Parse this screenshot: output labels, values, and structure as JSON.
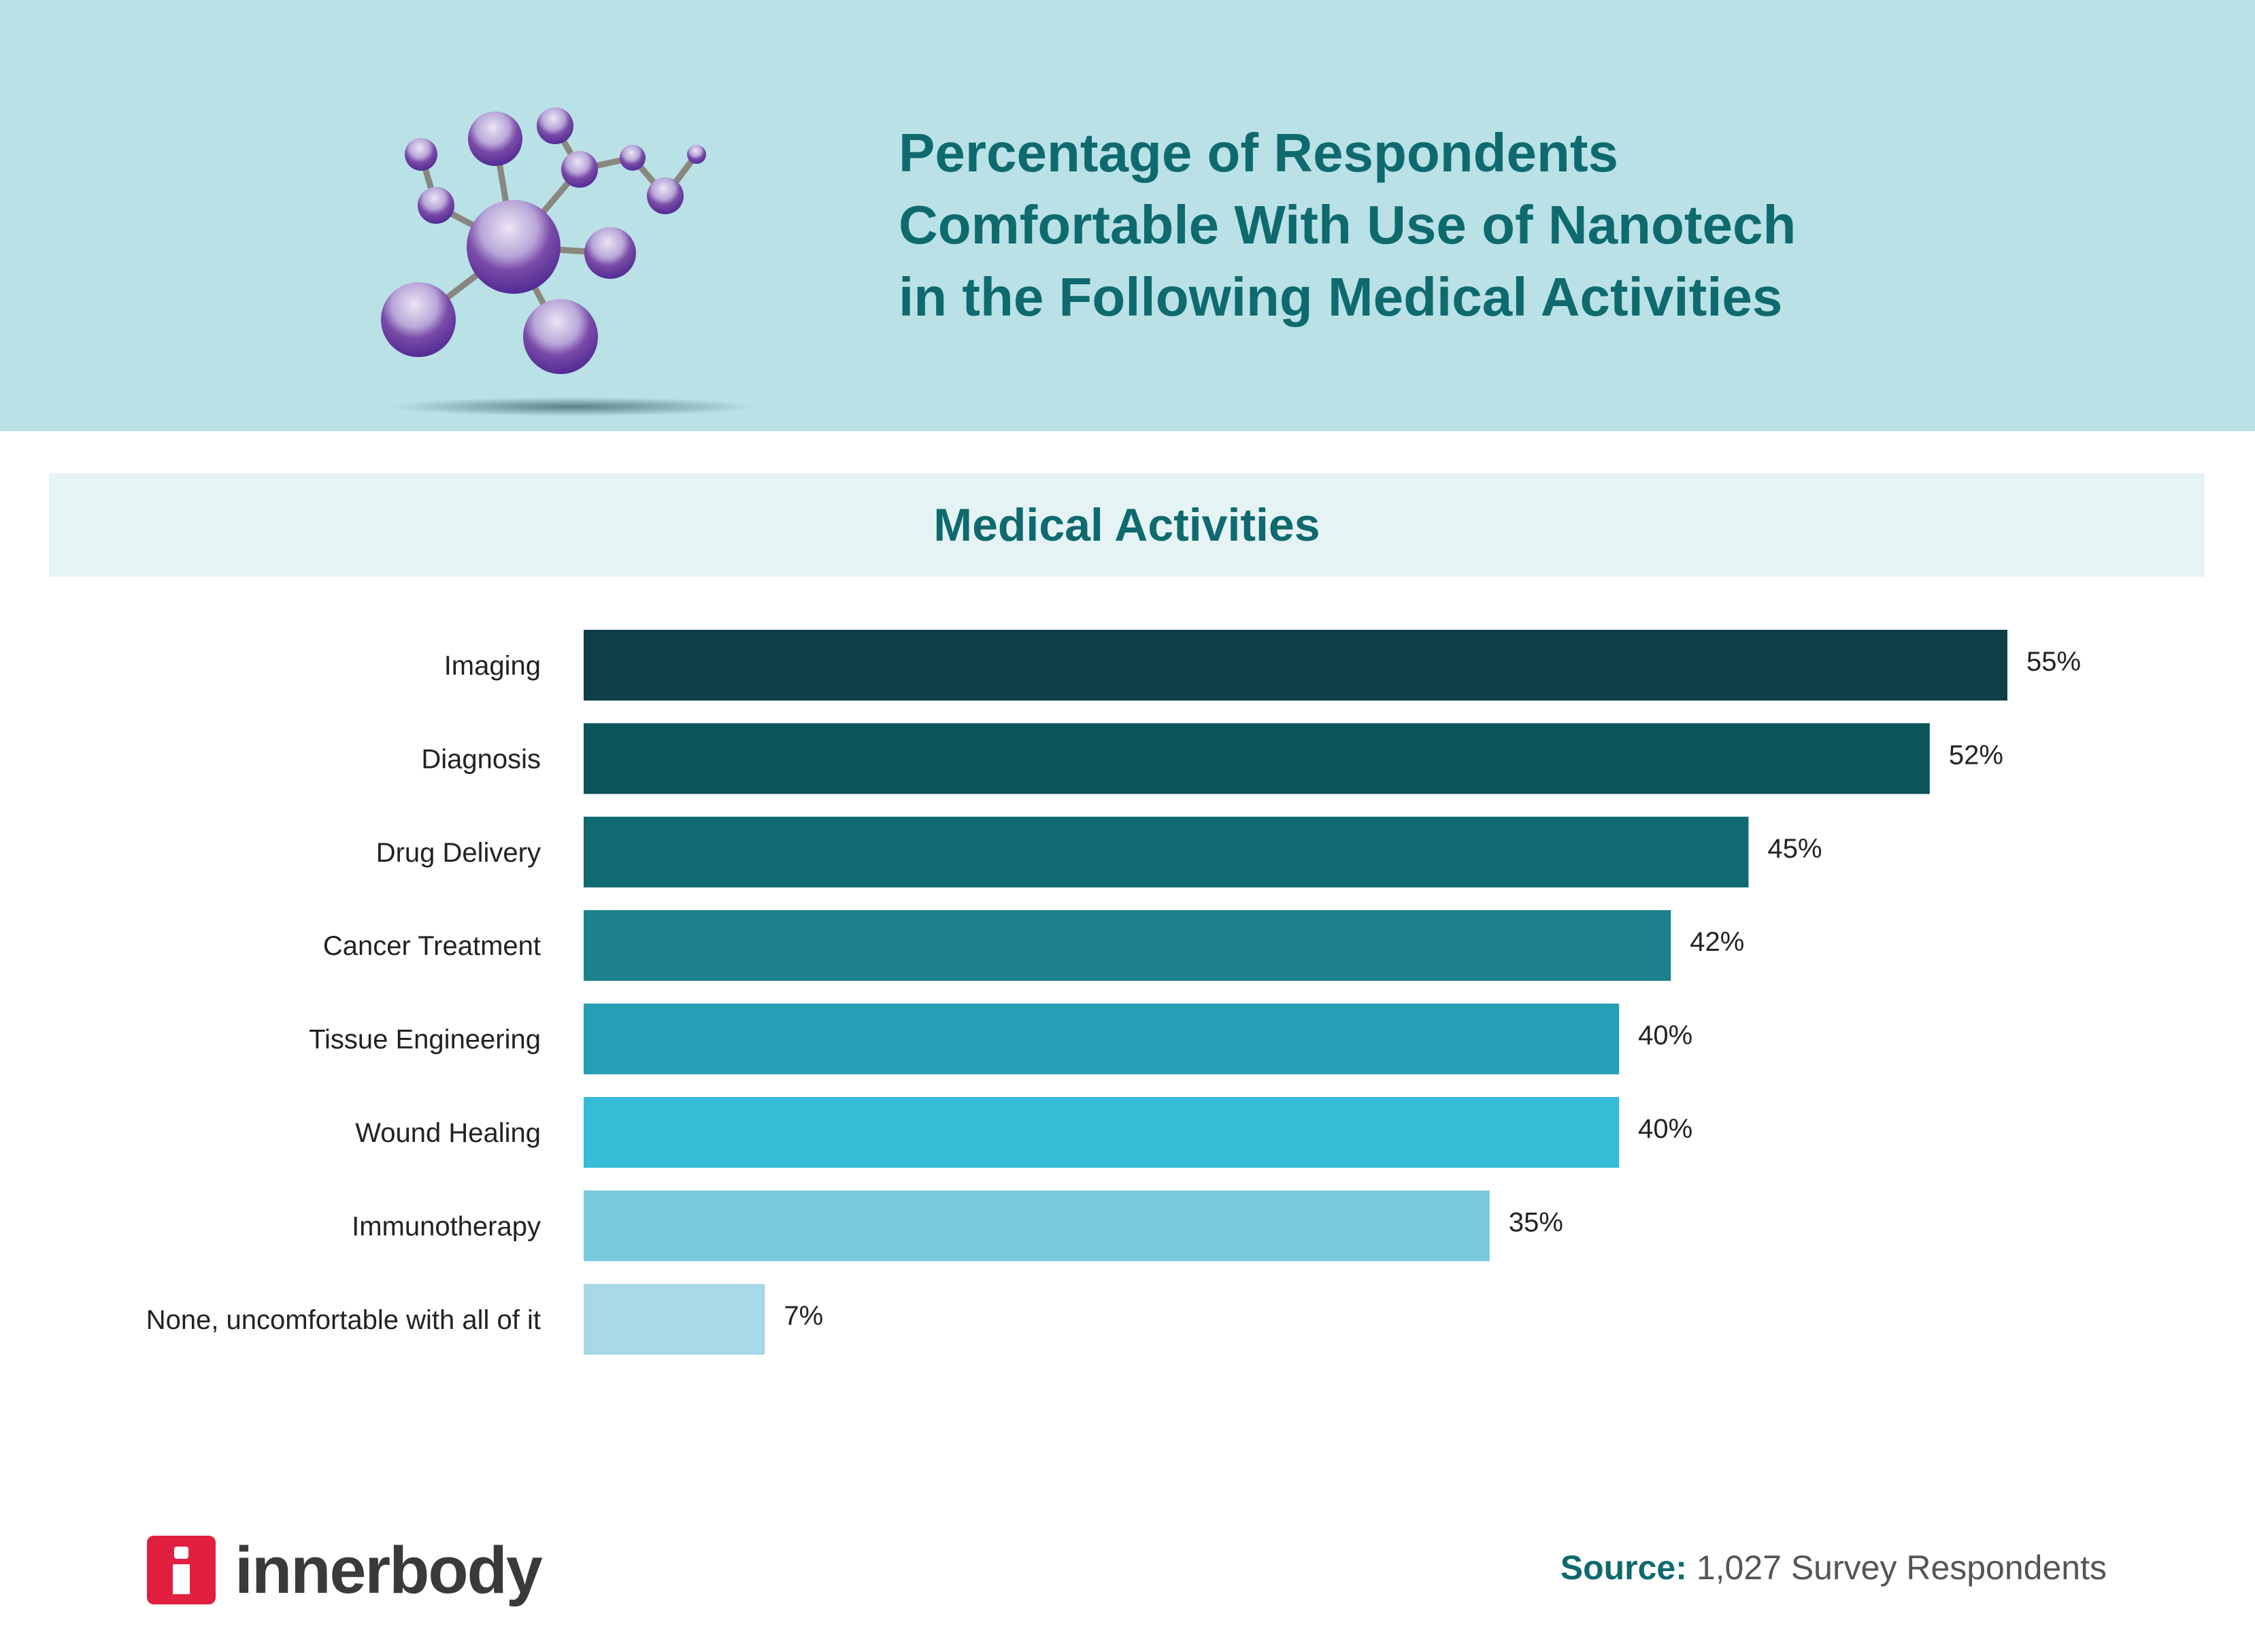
{
  "header": {
    "title_lines": [
      "Percentage of Respondents",
      "Comfortable With Use of Nanotech",
      "in the Following Medical Activities"
    ],
    "illustration": "molecule-icon"
  },
  "chart_data": {
    "type": "bar",
    "orientation": "horizontal",
    "title": "Medical Activities",
    "categories": [
      "Imaging",
      "Diagnosis",
      "Drug Delivery",
      "Cancer Treatment",
      "Tissue Engineering",
      "Wound Healing",
      "Immunotherapy",
      "None, uncomfortable with all of it"
    ],
    "values": [
      55,
      52,
      45,
      42,
      40,
      40,
      35,
      7
    ],
    "data_labels": [
      "55%",
      "52%",
      "45%",
      "42%",
      "40%",
      "40%",
      "35%",
      "7%"
    ],
    "unit": "%",
    "colors": [
      "#0d3f49",
      "#0a545a",
      "#116a72",
      "#1c818c",
      "#269eb5",
      "#36bcd6",
      "#7acbde",
      "#a6d8e7"
    ],
    "grid": false,
    "legend": "none"
  },
  "footer": {
    "logo_text": "innerbody",
    "logo_color": "#e11f3f",
    "source_label": "Source:",
    "source_text": "1,027 Survey Respondents"
  }
}
